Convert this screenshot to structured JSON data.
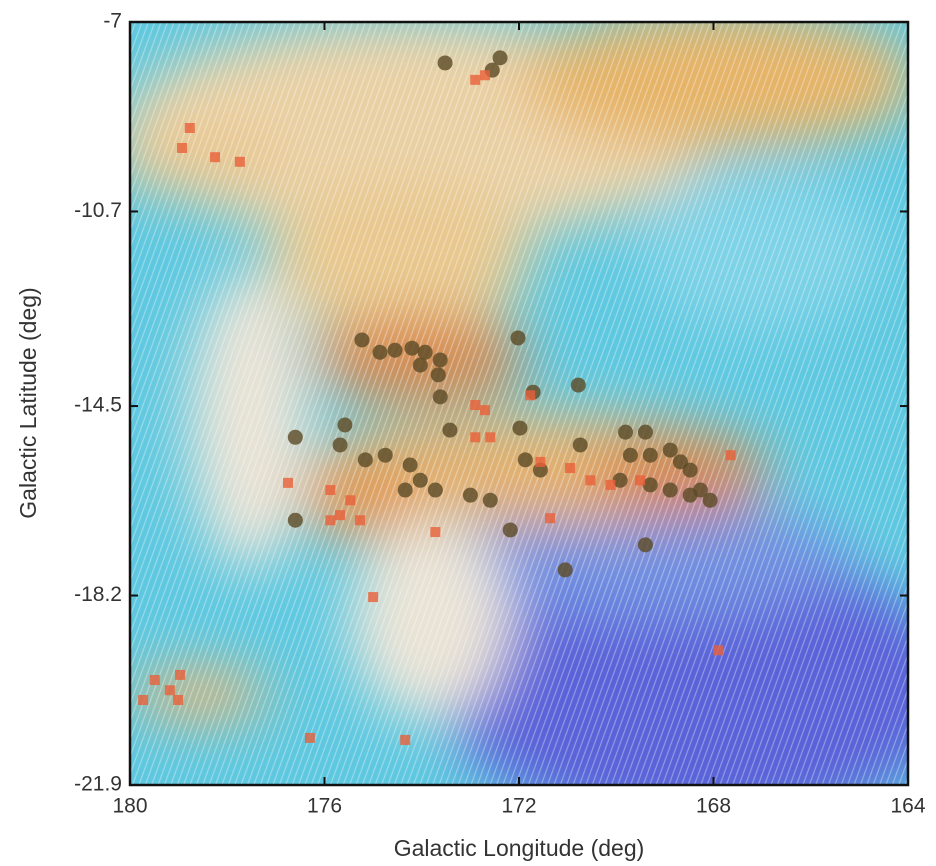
{
  "chart_data": {
    "type": "scatter",
    "x_label": "Galactic Longitude (deg)",
    "y_label": "Galactic Latitude (deg)",
    "xlim": [
      180,
      164
    ],
    "ylim": [
      -21.9,
      -7
    ],
    "xticks": [
      180,
      176,
      172,
      168,
      164
    ],
    "yticks": [
      -7,
      -10.7,
      -14.5,
      -18.2,
      -21.9
    ],
    "series": [
      {
        "marker": "circle",
        "color": "#5b4a26",
        "x": [
          173.52,
          172.39,
          172.55,
          175.23,
          174.86,
          174.55,
          174.2,
          173.93,
          173.62,
          174.03,
          173.66,
          172.02,
          170.78,
          173.62,
          171.71,
          175.58,
          175.68,
          176.6,
          175.16,
          174.75,
          174.24,
          174.03,
          173.72,
          174.34,
          173.42,
          173.0,
          172.59,
          171.98,
          171.87,
          171.56,
          170.74,
          169.81,
          169.4,
          169.71,
          169.3,
          168.89,
          168.68,
          168.48,
          168.27,
          168.07,
          169.92,
          169.3,
          168.89,
          168.48,
          176.6,
          172.18,
          171.05,
          169.4
        ],
        "values": [
          -7.8,
          -7.7,
          -7.94,
          -13.21,
          -13.45,
          -13.41,
          -13.37,
          -13.45,
          -13.6,
          -13.7,
          -13.89,
          -13.17,
          -14.09,
          -14.32,
          -14.23,
          -14.87,
          -15.26,
          -15.11,
          -15.55,
          -15.46,
          -15.65,
          -15.95,
          -16.14,
          -16.14,
          -14.97,
          -16.24,
          -16.34,
          -14.93,
          -15.55,
          -15.75,
          -15.26,
          -15.01,
          -15.01,
          -15.46,
          -15.46,
          -15.36,
          -15.59,
          -15.75,
          -16.14,
          -16.34,
          -15.95,
          -16.04,
          -16.14,
          -16.24,
          -16.73,
          -16.92,
          -17.7,
          -17.21
        ]
      },
      {
        "marker": "square",
        "color": "#e8603a",
        "x": [
          178.77,
          178.93,
          178.25,
          177.74,
          172.9,
          172.7,
          175.88,
          175.47,
          175.68,
          175.27,
          175.88,
          172.9,
          172.7,
          171.77,
          172.9,
          172.59,
          171.56,
          170.95,
          170.53,
          170.12,
          169.51,
          167.65,
          171.36,
          173.72,
          176.75,
          175.0,
          179.73,
          179.49,
          179.18,
          178.97,
          179.01,
          176.3,
          174.34,
          167.9
        ],
        "values": [
          -9.07,
          -9.46,
          -9.64,
          -9.73,
          -8.13,
          -8.04,
          -16.14,
          -16.34,
          -16.63,
          -16.73,
          -16.73,
          -14.48,
          -14.58,
          -14.29,
          -15.11,
          -15.11,
          -15.59,
          -15.71,
          -15.95,
          -16.04,
          -15.95,
          -15.46,
          -16.69,
          -16.96,
          -16.0,
          -18.23,
          -20.24,
          -19.85,
          -20.05,
          -19.75,
          -20.24,
          -20.98,
          -21.02,
          -19.27
        ]
      }
    ]
  }
}
